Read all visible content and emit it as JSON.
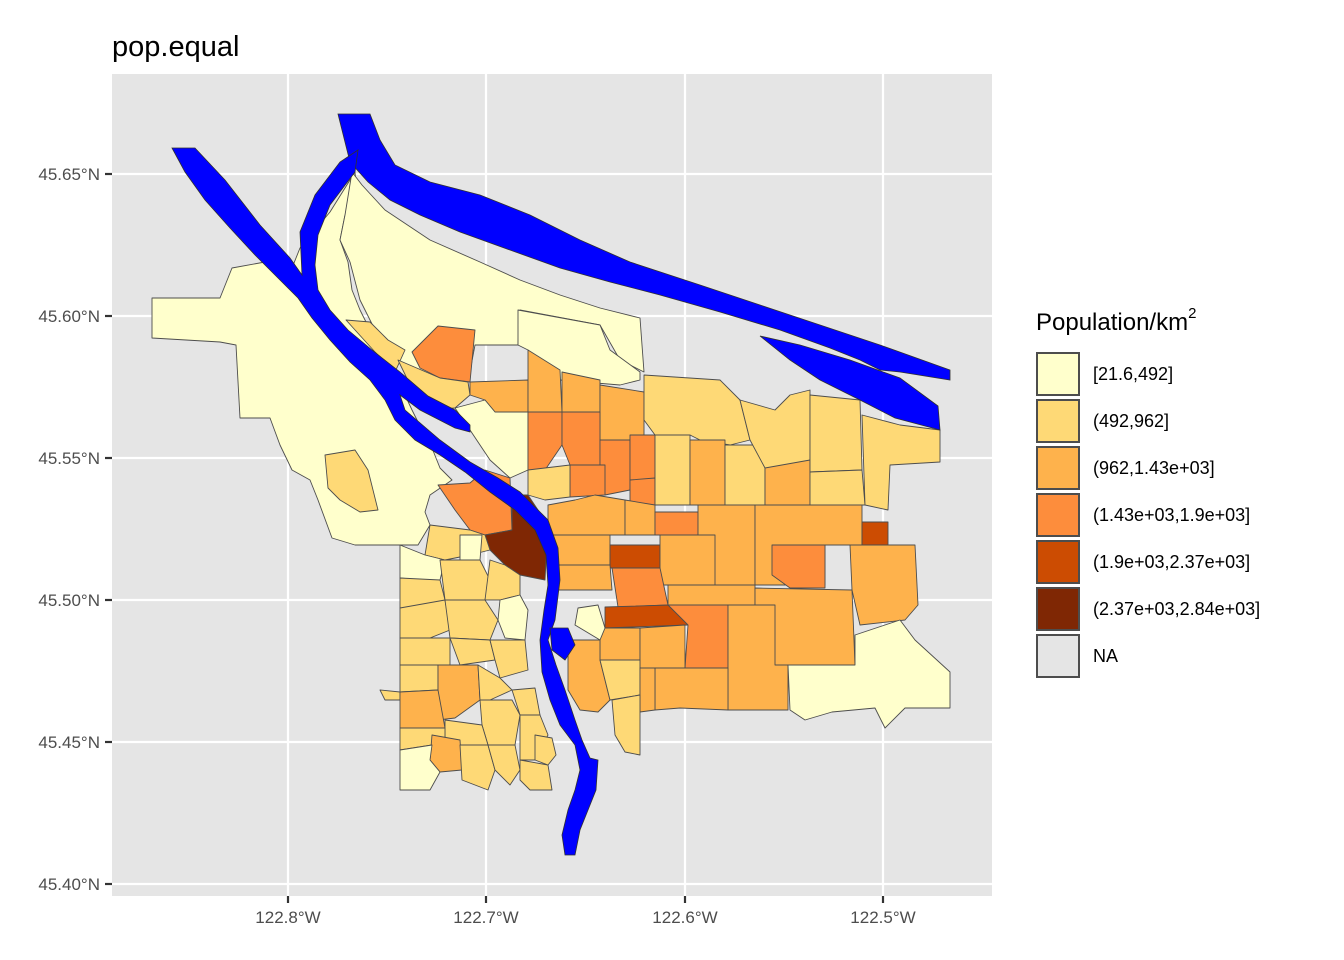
{
  "map": {
    "title": "pop.equal",
    "x_ticks": [
      "122.8°W",
      "122.7°W",
      "122.6°W",
      "122.5°W"
    ],
    "y_ticks": [
      "45.65°N",
      "45.60°N",
      "45.55°N",
      "45.50°N",
      "45.45°N",
      "45.40°N"
    ],
    "background": "#e5e5e5",
    "water_color": "#0000ff",
    "legend": {
      "title_main": "Population/km",
      "title_sup": "2",
      "items": [
        {
          "label": "[21.6,492]",
          "color": "#ffffcc"
        },
        {
          "label": "(492,962]",
          "color": "#fed976"
        },
        {
          "label": "(962,1.43e+03]",
          "color": "#feb24c"
        },
        {
          "label": "(1.43e+03,1.9e+03]",
          "color": "#fd8d3c"
        },
        {
          "label": "(1.9e+03,2.37e+03]",
          "color": "#cc4c02"
        },
        {
          "label": "(2.37e+03,2.84e+03]",
          "color": "#7f2704"
        },
        {
          "label": "NA",
          "color": "#e5e5e5"
        }
      ]
    }
  }
}
